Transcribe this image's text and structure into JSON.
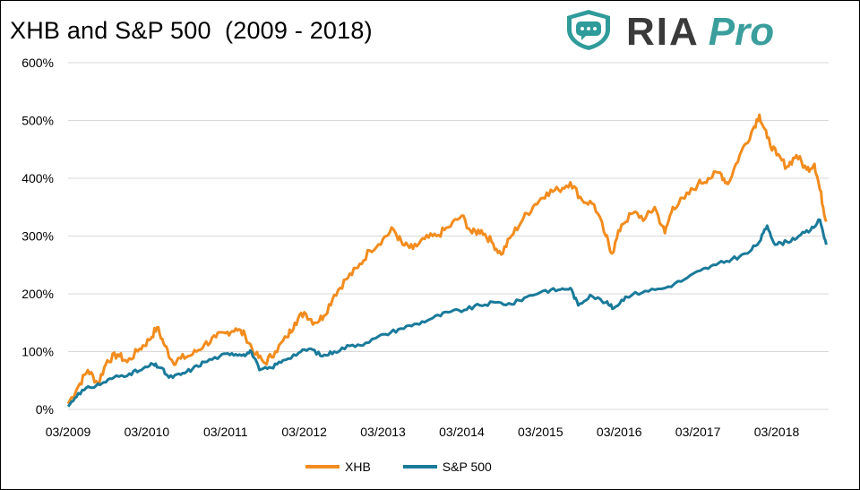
{
  "chart_data": {
    "type": "line",
    "title": "XHB and S&P 500  (2009 - 2018)",
    "xlabel": "",
    "ylabel": "",
    "x": [
      "03/2009",
      "03/2010",
      "03/2011",
      "03/2012",
      "03/2013",
      "03/2014",
      "03/2015",
      "03/2016",
      "03/2017",
      "03/2018"
    ],
    "ylim": [
      0,
      600
    ],
    "yticks": [
      "0%",
      "100%",
      "200%",
      "300%",
      "400%",
      "500%",
      "600%"
    ],
    "grid": true,
    "legend": "bottom",
    "series": [
      {
        "name": "XHB",
        "color": "#F28C1E",
        "points": [
          [
            2009.17,
            10
          ],
          [
            2009.3,
            40
          ],
          [
            2009.42,
            68
          ],
          [
            2009.55,
            45
          ],
          [
            2009.67,
            85
          ],
          [
            2009.8,
            95
          ],
          [
            2009.92,
            82
          ],
          [
            2010.08,
            105
          ],
          [
            2010.2,
            120
          ],
          [
            2010.3,
            142
          ],
          [
            2010.4,
            110
          ],
          [
            2010.5,
            82
          ],
          [
            2010.6,
            88
          ],
          [
            2010.75,
            95
          ],
          [
            2010.9,
            112
          ],
          [
            2011.05,
            125
          ],
          [
            2011.17,
            132
          ],
          [
            2011.3,
            140
          ],
          [
            2011.42,
            128
          ],
          [
            2011.55,
            95
          ],
          [
            2011.67,
            80
          ],
          [
            2011.8,
            100
          ],
          [
            2011.95,
            125
          ],
          [
            2012.05,
            150
          ],
          [
            2012.17,
            168
          ],
          [
            2012.3,
            150
          ],
          [
            2012.42,
            162
          ],
          [
            2012.55,
            198
          ],
          [
            2012.7,
            225
          ],
          [
            2012.85,
            245
          ],
          [
            2013.0,
            275
          ],
          [
            2013.17,
            295
          ],
          [
            2013.3,
            312
          ],
          [
            2013.42,
            285
          ],
          [
            2013.55,
            278
          ],
          [
            2013.7,
            295
          ],
          [
            2013.85,
            300
          ],
          [
            2014.0,
            315
          ],
          [
            2014.17,
            335
          ],
          [
            2014.3,
            305
          ],
          [
            2014.42,
            310
          ],
          [
            2014.55,
            290
          ],
          [
            2014.67,
            268
          ],
          [
            2014.8,
            300
          ],
          [
            2014.95,
            330
          ],
          [
            2015.1,
            355
          ],
          [
            2015.25,
            375
          ],
          [
            2015.4,
            380
          ],
          [
            2015.55,
            393
          ],
          [
            2015.7,
            362
          ],
          [
            2015.85,
            355
          ],
          [
            2016.0,
            300
          ],
          [
            2016.08,
            270
          ],
          [
            2016.2,
            320
          ],
          [
            2016.35,
            340
          ],
          [
            2016.5,
            330
          ],
          [
            2016.62,
            350
          ],
          [
            2016.75,
            305
          ],
          [
            2016.85,
            350
          ],
          [
            2017.0,
            365
          ],
          [
            2017.17,
            390
          ],
          [
            2017.3,
            400
          ],
          [
            2017.45,
            410
          ],
          [
            2017.55,
            390
          ],
          [
            2017.7,
            440
          ],
          [
            2017.85,
            480
          ],
          [
            2017.95,
            510
          ],
          [
            2018.05,
            470
          ],
          [
            2018.17,
            440
          ],
          [
            2018.3,
            420
          ],
          [
            2018.42,
            440
          ],
          [
            2018.55,
            415
          ],
          [
            2018.65,
            425
          ],
          [
            2018.72,
            380
          ],
          [
            2018.8,
            325
          ]
        ]
      },
      {
        "name": "S&P 500",
        "color": "#1A7A9A",
        "points": [
          [
            2009.17,
            5
          ],
          [
            2009.3,
            28
          ],
          [
            2009.45,
            38
          ],
          [
            2009.6,
            45
          ],
          [
            2009.75,
            55
          ],
          [
            2009.95,
            62
          ],
          [
            2010.1,
            68
          ],
          [
            2010.25,
            78
          ],
          [
            2010.35,
            72
          ],
          [
            2010.45,
            55
          ],
          [
            2010.6,
            60
          ],
          [
            2010.75,
            70
          ],
          [
            2010.9,
            82
          ],
          [
            2011.1,
            92
          ],
          [
            2011.25,
            97
          ],
          [
            2011.4,
            95
          ],
          [
            2011.5,
            100
          ],
          [
            2011.6,
            68
          ],
          [
            2011.75,
            72
          ],
          [
            2011.9,
            85
          ],
          [
            2012.1,
            98
          ],
          [
            2012.25,
            105
          ],
          [
            2012.4,
            92
          ],
          [
            2012.55,
            100
          ],
          [
            2012.75,
            110
          ],
          [
            2012.95,
            115
          ],
          [
            2013.2,
            130
          ],
          [
            2013.4,
            140
          ],
          [
            2013.6,
            148
          ],
          [
            2013.8,
            158
          ],
          [
            2014.0,
            168
          ],
          [
            2014.2,
            172
          ],
          [
            2014.4,
            180
          ],
          [
            2014.6,
            185
          ],
          [
            2014.8,
            182
          ],
          [
            2015.0,
            195
          ],
          [
            2015.2,
            205
          ],
          [
            2015.4,
            207
          ],
          [
            2015.55,
            210
          ],
          [
            2015.65,
            180
          ],
          [
            2015.8,
            198
          ],
          [
            2016.0,
            185
          ],
          [
            2016.1,
            175
          ],
          [
            2016.25,
            195
          ],
          [
            2016.5,
            205
          ],
          [
            2016.75,
            210
          ],
          [
            2017.0,
            225
          ],
          [
            2017.2,
            240
          ],
          [
            2017.4,
            250
          ],
          [
            2017.6,
            260
          ],
          [
            2017.8,
            270
          ],
          [
            2017.95,
            290
          ],
          [
            2018.05,
            318
          ],
          [
            2018.15,
            285
          ],
          [
            2018.3,
            290
          ],
          [
            2018.45,
            300
          ],
          [
            2018.6,
            310
          ],
          [
            2018.72,
            328
          ],
          [
            2018.8,
            285
          ]
        ]
      }
    ]
  },
  "logo": {
    "ria": "RIA",
    "pro": "Pro"
  }
}
